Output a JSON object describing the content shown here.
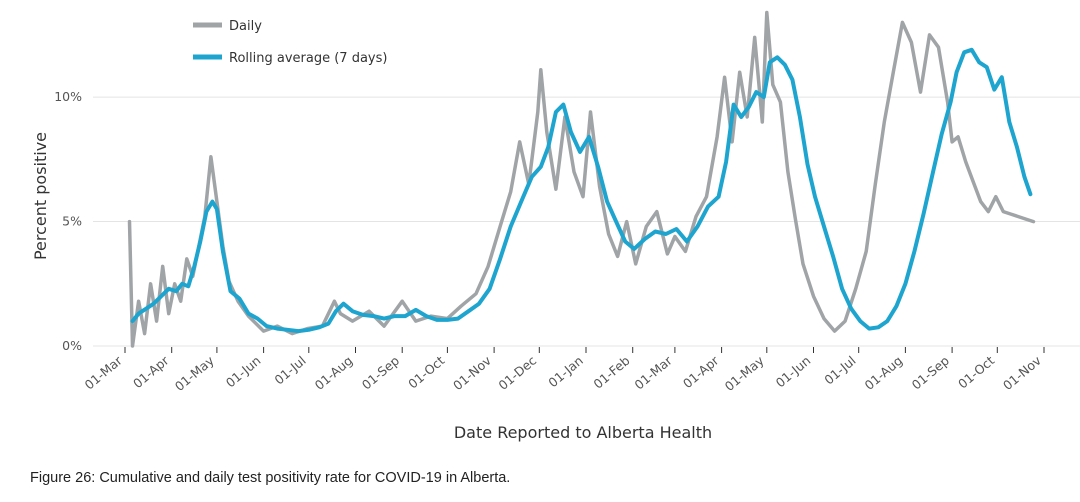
{
  "caption": "Figure 26: Cumulative and daily test positivity rate for COVID-19 in Alberta.",
  "chart_data": {
    "type": "line",
    "xlabel": "Date Reported to Alberta Health",
    "ylabel": "Percent positive",
    "ylim": [
      0,
      13.5
    ],
    "yticks": [
      0,
      5,
      10
    ],
    "ytick_labels": [
      "0%",
      "5%",
      "10%"
    ],
    "xlim": [
      "2020-03-01",
      "2021-11-01"
    ],
    "x_ticks": [
      "2020-03-01",
      "2020-04-01",
      "2020-05-01",
      "2020-06-01",
      "2020-07-01",
      "2020-08-01",
      "2020-09-01",
      "2020-10-01",
      "2020-11-01",
      "2020-12-01",
      "2021-01-01",
      "2021-02-01",
      "2021-03-01",
      "2021-04-01",
      "2021-05-01",
      "2021-06-01",
      "2021-07-01",
      "2021-08-01",
      "2021-09-01",
      "2021-10-01",
      "2021-11-01"
    ],
    "x_tick_labels": [
      "01-Mar",
      "01-Apr",
      "01-May",
      "01-Jun",
      "01-Jul",
      "01-Aug",
      "01-Sep",
      "01-Oct",
      "01-Nov",
      "01-Dec",
      "01-Jan",
      "01-Feb",
      "01-Mar",
      "01-Apr",
      "01-May",
      "01-Jun",
      "01-Jul",
      "01-Aug",
      "01-Sep",
      "01-Oct",
      "01-Nov"
    ],
    "grid": true,
    "legend_position": "top-left",
    "series": [
      {
        "name": "Daily",
        "color": "#a0a4a6",
        "x": [
          "2020-03-04",
          "2020-03-06",
          "2020-03-10",
          "2020-03-14",
          "2020-03-18",
          "2020-03-22",
          "2020-03-26",
          "2020-03-30",
          "2020-04-03",
          "2020-04-07",
          "2020-04-11",
          "2020-04-15",
          "2020-04-19",
          "2020-04-23",
          "2020-04-27",
          "2020-05-01",
          "2020-05-05",
          "2020-05-09",
          "2020-05-15",
          "2020-05-22",
          "2020-06-01",
          "2020-06-10",
          "2020-06-20",
          "2020-06-30",
          "2020-07-10",
          "2020-07-18",
          "2020-07-22",
          "2020-07-30",
          "2020-08-10",
          "2020-08-20",
          "2020-09-01",
          "2020-09-10",
          "2020-09-20",
          "2020-10-01",
          "2020-10-10",
          "2020-10-20",
          "2020-10-28",
          "2020-11-05",
          "2020-11-12",
          "2020-11-18",
          "2020-11-24",
          "2020-11-30",
          "2020-12-02",
          "2020-12-06",
          "2020-12-12",
          "2020-12-18",
          "2020-12-24",
          "2020-12-30",
          "2021-01-04",
          "2021-01-10",
          "2021-01-16",
          "2021-01-22",
          "2021-01-28",
          "2021-02-03",
          "2021-02-10",
          "2021-02-17",
          "2021-02-24",
          "2021-03-01",
          "2021-03-08",
          "2021-03-15",
          "2021-03-22",
          "2021-03-29",
          "2021-04-03",
          "2021-04-08",
          "2021-04-13",
          "2021-04-18",
          "2021-04-23",
          "2021-04-28",
          "2021-05-01",
          "2021-05-05",
          "2021-05-10",
          "2021-05-15",
          "2021-05-20",
          "2021-05-25",
          "2021-06-01",
          "2021-06-08",
          "2021-06-15",
          "2021-06-22",
          "2021-06-29",
          "2021-07-06",
          "2021-07-12",
          "2021-07-18",
          "2021-07-24",
          "2021-07-30",
          "2021-08-05",
          "2021-08-11",
          "2021-08-17",
          "2021-08-23",
          "2021-08-29",
          "2021-09-01",
          "2021-09-05",
          "2021-09-10",
          "2021-09-15",
          "2021-09-20",
          "2021-09-25",
          "2021-09-30",
          "2021-10-05",
          "2021-10-10",
          "2021-10-15",
          "2021-10-20",
          "2021-10-25"
        ],
        "y": [
          5.0,
          0.0,
          1.8,
          0.5,
          2.5,
          1.0,
          3.2,
          1.3,
          2.5,
          1.8,
          3.5,
          2.8,
          4.0,
          5.2,
          7.6,
          5.8,
          4.0,
          2.6,
          1.8,
          1.2,
          0.6,
          0.8,
          0.5,
          0.7,
          0.8,
          1.8,
          1.3,
          1.0,
          1.4,
          0.8,
          1.8,
          1.0,
          1.2,
          1.1,
          1.6,
          2.1,
          3.2,
          4.8,
          6.2,
          8.2,
          6.5,
          9.4,
          11.1,
          8.6,
          6.3,
          9.2,
          7.0,
          6.0,
          9.4,
          6.4,
          4.5,
          3.6,
          5.0,
          3.3,
          4.8,
          5.4,
          3.7,
          4.4,
          3.8,
          5.2,
          6.0,
          8.4,
          10.8,
          8.2,
          11.0,
          9.2,
          12.4,
          9.0,
          13.4,
          10.5,
          9.8,
          7.0,
          5.1,
          3.3,
          2.0,
          1.1,
          0.6,
          1.0,
          2.3,
          3.8,
          6.5,
          9.0,
          11.0,
          13.0,
          12.2,
          10.2,
          12.5,
          12.0,
          9.8,
          8.2,
          8.4,
          7.4,
          6.6,
          5.8,
          5.4,
          6.0,
          5.4,
          5.3,
          5.2,
          5.1,
          5.0
        ]
      },
      {
        "name": "Rolling average (7 days)",
        "color": "#1ea5cf",
        "x": [
          "2020-03-06",
          "2020-03-10",
          "2020-03-15",
          "2020-03-20",
          "2020-03-25",
          "2020-03-30",
          "2020-04-04",
          "2020-04-08",
          "2020-04-12",
          "2020-04-16",
          "2020-04-20",
          "2020-04-24",
          "2020-04-28",
          "2020-05-01",
          "2020-05-05",
          "2020-05-10",
          "2020-05-16",
          "2020-05-22",
          "2020-05-28",
          "2020-06-03",
          "2020-06-10",
          "2020-06-17",
          "2020-06-24",
          "2020-07-01",
          "2020-07-08",
          "2020-07-14",
          "2020-07-19",
          "2020-07-24",
          "2020-07-30",
          "2020-08-06",
          "2020-08-13",
          "2020-08-20",
          "2020-08-27",
          "2020-09-03",
          "2020-09-10",
          "2020-09-17",
          "2020-09-24",
          "2020-10-01",
          "2020-10-08",
          "2020-10-15",
          "2020-10-22",
          "2020-10-29",
          "2020-11-05",
          "2020-11-12",
          "2020-11-19",
          "2020-11-26",
          "2020-12-02",
          "2020-12-07",
          "2020-12-12",
          "2020-12-17",
          "2020-12-22",
          "2020-12-28",
          "2021-01-03",
          "2021-01-09",
          "2021-01-15",
          "2021-01-21",
          "2021-01-27",
          "2021-02-02",
          "2021-02-09",
          "2021-02-16",
          "2021-02-23",
          "2021-03-02",
          "2021-03-09",
          "2021-03-16",
          "2021-03-23",
          "2021-03-30",
          "2021-04-04",
          "2021-04-09",
          "2021-04-14",
          "2021-04-19",
          "2021-04-24",
          "2021-04-29",
          "2021-05-03",
          "2021-05-08",
          "2021-05-13",
          "2021-05-18",
          "2021-05-23",
          "2021-05-28",
          "2021-06-02",
          "2021-06-08",
          "2021-06-14",
          "2021-06-20",
          "2021-06-26",
          "2021-07-02",
          "2021-07-08",
          "2021-07-14",
          "2021-07-20",
          "2021-07-26",
          "2021-08-01",
          "2021-08-07",
          "2021-08-13",
          "2021-08-19",
          "2021-08-25",
          "2021-08-31",
          "2021-09-04",
          "2021-09-09",
          "2021-09-14",
          "2021-09-19",
          "2021-09-24",
          "2021-09-29",
          "2021-10-04",
          "2021-10-09",
          "2021-10-14",
          "2021-10-19",
          "2021-10-23"
        ],
        "y": [
          1.0,
          1.3,
          1.5,
          1.7,
          2.0,
          2.3,
          2.2,
          2.5,
          2.4,
          3.2,
          4.2,
          5.4,
          5.8,
          5.5,
          3.8,
          2.2,
          1.9,
          1.3,
          1.1,
          0.8,
          0.7,
          0.65,
          0.6,
          0.65,
          0.75,
          0.9,
          1.4,
          1.7,
          1.4,
          1.25,
          1.2,
          1.1,
          1.2,
          1.2,
          1.45,
          1.2,
          1.05,
          1.05,
          1.1,
          1.4,
          1.7,
          2.3,
          3.5,
          4.8,
          5.8,
          6.8,
          7.2,
          8.0,
          9.4,
          9.7,
          8.6,
          7.8,
          8.4,
          7.2,
          5.8,
          5.0,
          4.2,
          3.9,
          4.3,
          4.6,
          4.5,
          4.7,
          4.2,
          4.8,
          5.6,
          6.0,
          7.4,
          9.7,
          9.2,
          9.6,
          10.2,
          10.0,
          11.4,
          11.6,
          11.3,
          10.7,
          9.2,
          7.3,
          6.0,
          4.8,
          3.6,
          2.3,
          1.5,
          1.0,
          0.7,
          0.75,
          1.0,
          1.6,
          2.5,
          3.8,
          5.3,
          6.9,
          8.5,
          9.8,
          11.0,
          11.8,
          11.9,
          11.4,
          11.2,
          10.3,
          10.8,
          9.0,
          8.0,
          6.8,
          6.1
        ]
      }
    ]
  }
}
